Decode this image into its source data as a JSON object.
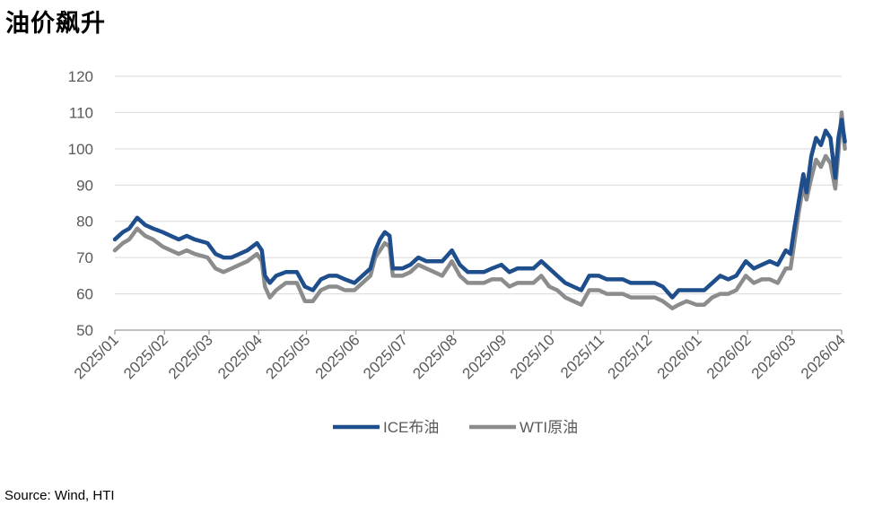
{
  "title": "油价飙升",
  "source": "Source: Wind, HTI",
  "chart_data": {
    "type": "line",
    "ylim": [
      50,
      120
    ],
    "yticks": [
      "50",
      "60",
      "70",
      "80",
      "90",
      "100",
      "110",
      "120"
    ],
    "x_tick_labels": [
      "2025/01",
      "2025/02",
      "2025/03",
      "2025/04",
      "2025/05",
      "2025/06",
      "2025/07",
      "2025/08",
      "2025/09",
      "2025/10",
      "2025/11",
      "2025/12",
      "2026/01",
      "2026/02",
      "2026/03",
      "2026/04"
    ],
    "grid": true,
    "legend_position": "bottom",
    "series": [
      {
        "name": "ICE布油",
        "color": "#1F4E8C",
        "points": [
          [
            "2025/01/01",
            75
          ],
          [
            "2025/01/06",
            77
          ],
          [
            "2025/01/10",
            78
          ],
          [
            "2025/01/15",
            81
          ],
          [
            "2025/01/20",
            79
          ],
          [
            "2025/01/25",
            78
          ],
          [
            "2025/01/31",
            77
          ],
          [
            "2025/02/05",
            76
          ],
          [
            "2025/02/10",
            75
          ],
          [
            "2025/02/15",
            76
          ],
          [
            "2025/02/20",
            75
          ],
          [
            "2025/02/28",
            74
          ],
          [
            "2025/03/05",
            71
          ],
          [
            "2025/03/10",
            70
          ],
          [
            "2025/03/15",
            70
          ],
          [
            "2025/03/20",
            71
          ],
          [
            "2025/03/25",
            72
          ],
          [
            "2025/03/31",
            74
          ],
          [
            "2025/04/03",
            72
          ],
          [
            "2025/04/05",
            65
          ],
          [
            "2025/04/08",
            63
          ],
          [
            "2025/04/12",
            65
          ],
          [
            "2025/04/18",
            66
          ],
          [
            "2025/04/25",
            66
          ],
          [
            "2025/04/30",
            62
          ],
          [
            "2025/05/05",
            61
          ],
          [
            "2025/05/10",
            64
          ],
          [
            "2025/05/15",
            65
          ],
          [
            "2025/05/20",
            65
          ],
          [
            "2025/05/25",
            64
          ],
          [
            "2025/05/31",
            63
          ],
          [
            "2025/06/05",
            65
          ],
          [
            "2025/06/10",
            67
          ],
          [
            "2025/06/13",
            72
          ],
          [
            "2025/06/16",
            75
          ],
          [
            "2025/06/19",
            77
          ],
          [
            "2025/06/22",
            76
          ],
          [
            "2025/06/24",
            67
          ],
          [
            "2025/06/30",
            67
          ],
          [
            "2025/07/05",
            68
          ],
          [
            "2025/07/10",
            70
          ],
          [
            "2025/07/15",
            69
          ],
          [
            "2025/07/20",
            69
          ],
          [
            "2025/07/25",
            69
          ],
          [
            "2025/07/31",
            72
          ],
          [
            "2025/08/05",
            68
          ],
          [
            "2025/08/10",
            66
          ],
          [
            "2025/08/15",
            66
          ],
          [
            "2025/08/20",
            66
          ],
          [
            "2025/08/25",
            67
          ],
          [
            "2025/08/31",
            68
          ],
          [
            "2025/09/05",
            66
          ],
          [
            "2025/09/10",
            67
          ],
          [
            "2025/09/15",
            67
          ],
          [
            "2025/09/20",
            67
          ],
          [
            "2025/09/25",
            69
          ],
          [
            "2025/09/30",
            67
          ],
          [
            "2025/10/05",
            65
          ],
          [
            "2025/10/10",
            63
          ],
          [
            "2025/10/15",
            62
          ],
          [
            "2025/10/20",
            61
          ],
          [
            "2025/10/25",
            65
          ],
          [
            "2025/10/31",
            65
          ],
          [
            "2025/11/05",
            64
          ],
          [
            "2025/11/10",
            64
          ],
          [
            "2025/11/15",
            64
          ],
          [
            "2025/11/20",
            63
          ],
          [
            "2025/11/25",
            63
          ],
          [
            "2025/11/30",
            63
          ],
          [
            "2025/12/05",
            63
          ],
          [
            "2025/12/10",
            62
          ],
          [
            "2025/12/16",
            59
          ],
          [
            "2025/12/20",
            61
          ],
          [
            "2025/12/25",
            61
          ],
          [
            "2025/12/31",
            61
          ],
          [
            "2026/01/05",
            61
          ],
          [
            "2026/01/10",
            63
          ],
          [
            "2026/01/15",
            65
          ],
          [
            "2026/01/20",
            64
          ],
          [
            "2026/01/25",
            65
          ],
          [
            "2026/01/31",
            69
          ],
          [
            "2026/02/05",
            67
          ],
          [
            "2026/02/10",
            68
          ],
          [
            "2026/02/15",
            69
          ],
          [
            "2026/02/20",
            68
          ],
          [
            "2026/02/25",
            72
          ],
          [
            "2026/02/28",
            71
          ],
          [
            "2026/03/02",
            77
          ],
          [
            "2026/03/05",
            85
          ],
          [
            "2026/03/08",
            93
          ],
          [
            "2026/03/10",
            88
          ],
          [
            "2026/03/13",
            98
          ],
          [
            "2026/03/16",
            103
          ],
          [
            "2026/03/19",
            101
          ],
          [
            "2026/03/22",
            105
          ],
          [
            "2026/03/25",
            103
          ],
          [
            "2026/03/28",
            92
          ],
          [
            "2026/03/30",
            103
          ],
          [
            "2026/04/01",
            108
          ],
          [
            "2026/04/03",
            102
          ]
        ]
      },
      {
        "name": "WTI原油",
        "color": "#8C8C8C",
        "points": [
          [
            "2025/01/01",
            72
          ],
          [
            "2025/01/06",
            74
          ],
          [
            "2025/01/10",
            75
          ],
          [
            "2025/01/15",
            78
          ],
          [
            "2025/01/20",
            76
          ],
          [
            "2025/01/25",
            75
          ],
          [
            "2025/01/31",
            73
          ],
          [
            "2025/02/05",
            72
          ],
          [
            "2025/02/10",
            71
          ],
          [
            "2025/02/15",
            72
          ],
          [
            "2025/02/20",
            71
          ],
          [
            "2025/02/28",
            70
          ],
          [
            "2025/03/05",
            67
          ],
          [
            "2025/03/10",
            66
          ],
          [
            "2025/03/15",
            67
          ],
          [
            "2025/03/20",
            68
          ],
          [
            "2025/03/25",
            69
          ],
          [
            "2025/03/31",
            71
          ],
          [
            "2025/04/03",
            69
          ],
          [
            "2025/04/05",
            62
          ],
          [
            "2025/04/08",
            59
          ],
          [
            "2025/04/12",
            61
          ],
          [
            "2025/04/18",
            63
          ],
          [
            "2025/04/25",
            63
          ],
          [
            "2025/04/30",
            58
          ],
          [
            "2025/05/05",
            58
          ],
          [
            "2025/05/10",
            61
          ],
          [
            "2025/05/15",
            62
          ],
          [
            "2025/05/20",
            62
          ],
          [
            "2025/05/25",
            61
          ],
          [
            "2025/05/31",
            61
          ],
          [
            "2025/06/05",
            63
          ],
          [
            "2025/06/10",
            65
          ],
          [
            "2025/06/13",
            70
          ],
          [
            "2025/06/16",
            72
          ],
          [
            "2025/06/19",
            74
          ],
          [
            "2025/06/22",
            73
          ],
          [
            "2025/06/24",
            65
          ],
          [
            "2025/06/30",
            65
          ],
          [
            "2025/07/05",
            66
          ],
          [
            "2025/07/10",
            68
          ],
          [
            "2025/07/15",
            67
          ],
          [
            "2025/07/20",
            66
          ],
          [
            "2025/07/25",
            65
          ],
          [
            "2025/07/31",
            69
          ],
          [
            "2025/08/05",
            65
          ],
          [
            "2025/08/10",
            63
          ],
          [
            "2025/08/15",
            63
          ],
          [
            "2025/08/20",
            63
          ],
          [
            "2025/08/25",
            64
          ],
          [
            "2025/08/31",
            64
          ],
          [
            "2025/09/05",
            62
          ],
          [
            "2025/09/10",
            63
          ],
          [
            "2025/09/15",
            63
          ],
          [
            "2025/09/20",
            63
          ],
          [
            "2025/09/25",
            65
          ],
          [
            "2025/09/30",
            62
          ],
          [
            "2025/10/05",
            61
          ],
          [
            "2025/10/10",
            59
          ],
          [
            "2025/10/15",
            58
          ],
          [
            "2025/10/20",
            57
          ],
          [
            "2025/10/25",
            61
          ],
          [
            "2025/10/31",
            61
          ],
          [
            "2025/11/05",
            60
          ],
          [
            "2025/11/10",
            60
          ],
          [
            "2025/11/15",
            60
          ],
          [
            "2025/11/20",
            59
          ],
          [
            "2025/11/25",
            59
          ],
          [
            "2025/11/30",
            59
          ],
          [
            "2025/12/05",
            59
          ],
          [
            "2025/12/10",
            58
          ],
          [
            "2025/12/16",
            56
          ],
          [
            "2025/12/20",
            57
          ],
          [
            "2025/12/25",
            58
          ],
          [
            "2025/12/31",
            57
          ],
          [
            "2026/01/05",
            57
          ],
          [
            "2026/01/10",
            59
          ],
          [
            "2026/01/15",
            60
          ],
          [
            "2026/01/20",
            60
          ],
          [
            "2026/01/25",
            61
          ],
          [
            "2026/01/31",
            65
          ],
          [
            "2026/02/05",
            63
          ],
          [
            "2026/02/10",
            64
          ],
          [
            "2026/02/15",
            64
          ],
          [
            "2026/02/20",
            63
          ],
          [
            "2026/02/25",
            67
          ],
          [
            "2026/02/28",
            67
          ],
          [
            "2026/03/02",
            73
          ],
          [
            "2026/03/05",
            82
          ],
          [
            "2026/03/08",
            90
          ],
          [
            "2026/03/10",
            86
          ],
          [
            "2026/03/13",
            92
          ],
          [
            "2026/03/16",
            97
          ],
          [
            "2026/03/19",
            95
          ],
          [
            "2026/03/22",
            98
          ],
          [
            "2026/03/25",
            96
          ],
          [
            "2026/03/28",
            89
          ],
          [
            "2026/03/30",
            99
          ],
          [
            "2026/04/01",
            110
          ],
          [
            "2026/04/03",
            100
          ]
        ]
      }
    ]
  }
}
